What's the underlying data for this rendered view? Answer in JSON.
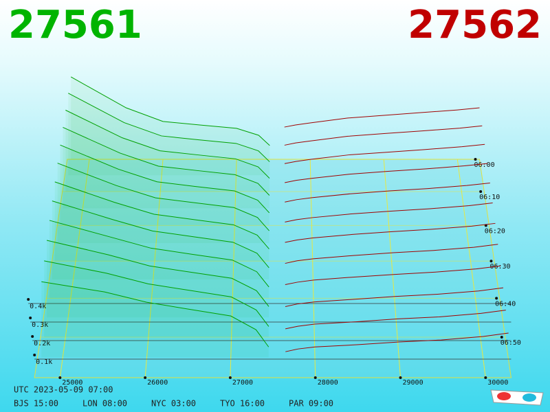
{
  "header": {
    "bid": "27561",
    "ask": "27562"
  },
  "chart_data": {
    "type": "depth3d",
    "xlim": [
      24700,
      30300
    ],
    "xticks": [
      25000,
      26000,
      27000,
      28000,
      29000,
      30000
    ],
    "yticks": [
      {
        "value": 100,
        "label": "0.1k"
      },
      {
        "value": 200,
        "label": "0.2k"
      },
      {
        "value": 300,
        "label": "0.3k"
      },
      {
        "value": 400,
        "label": "0.4k"
      }
    ],
    "zlim": [
      0,
      60
    ],
    "zticks": [
      {
        "value": 0,
        "label": "06:00"
      },
      {
        "value": 10,
        "label": "06:10"
      },
      {
        "value": 20,
        "label": "06:20"
      },
      {
        "value": 30,
        "label": "06:30"
      },
      {
        "value": 40,
        "label": "06:40"
      },
      {
        "value": 50,
        "label": "06:50"
      }
    ],
    "bid_color": "#00a000",
    "ask_color": "#a00000",
    "bid_prices": [
      24750,
      25500,
      26000,
      26500,
      27000,
      27300,
      27450
    ],
    "ask_prices": [
      27650,
      27800,
      28000,
      28500,
      29000,
      29500,
      30000,
      30300
    ],
    "snapshots": [
      {
        "t": 0,
        "bids": [
          514,
          321,
          236,
          214,
          193,
          150,
          86
        ],
        "asks": [
          201,
          214,
          227,
          257,
          274,
          291,
          308,
          321
        ]
      },
      {
        "t": 5,
        "bids": [
          505,
          324,
          242,
          218,
          196,
          150,
          83
        ],
        "asks": [
          185,
          199,
          211,
          240,
          257,
          273,
          290,
          304
        ]
      },
      {
        "t": 10,
        "bids": [
          495,
          327,
          248,
          223,
          199,
          150,
          81
        ],
        "asks": [
          170,
          183,
          196,
          223,
          239,
          255,
          273,
          287
        ]
      },
      {
        "t": 15,
        "bids": [
          486,
          331,
          253,
          227,
          202,
          150,
          78
        ],
        "asks": [
          154,
          168,
          180,
          205,
          222,
          237,
          255,
          269
        ]
      },
      {
        "t": 20,
        "bids": [
          477,
          334,
          259,
          231,
          205,
          150,
          75
        ],
        "asks": [
          139,
          153,
          165,
          188,
          205,
          219,
          237,
          252
        ]
      },
      {
        "t": 25,
        "bids": [
          468,
          337,
          265,
          236,
          208,
          150,
          72
        ],
        "asks": [
          123,
          137,
          149,
          171,
          187,
          201,
          219,
          235
        ]
      },
      {
        "t": 30,
        "bids": [
          458,
          340,
          271,
          240,
          210,
          150,
          70
        ],
        "asks": [
          108,
          122,
          134,
          154,
          170,
          184,
          202,
          218
        ]
      },
      {
        "t": 35,
        "bids": [
          449,
          343,
          277,
          245,
          213,
          150,
          67
        ],
        "asks": [
          92,
          107,
          118,
          137,
          153,
          166,
          184,
          201
        ]
      },
      {
        "t": 40,
        "bids": [
          440,
          346,
          283,
          249,
          216,
          150,
          64
        ],
        "asks": [
          77,
          91,
          103,
          120,
          135,
          148,
          166,
          183
        ]
      },
      {
        "t": 45,
        "bids": [
          431,
          350,
          288,
          253,
          219,
          150,
          61
        ],
        "asks": [
          61,
          76,
          87,
          102,
          118,
          130,
          148,
          166
        ]
      },
      {
        "t": 50,
        "bids": [
          421,
          353,
          294,
          258,
          222,
          150,
          59
        ],
        "asks": [
          46,
          60,
          72,
          85,
          101,
          112,
          131,
          149
        ]
      },
      {
        "t": 55,
        "bids": [
          412,
          356,
          300,
          262,
          225,
          150,
          56
        ],
        "asks": [
          30,
          45,
          56,
          68,
          83,
          94,
          113,
          132
        ]
      }
    ]
  },
  "footer": {
    "utc": "UTC 2023-05-09 07:00",
    "zones": [
      "BJS 15:00",
      "LON 08:00",
      "NYC 03:00",
      "TYO 16:00",
      "PAR 09:00"
    ]
  }
}
